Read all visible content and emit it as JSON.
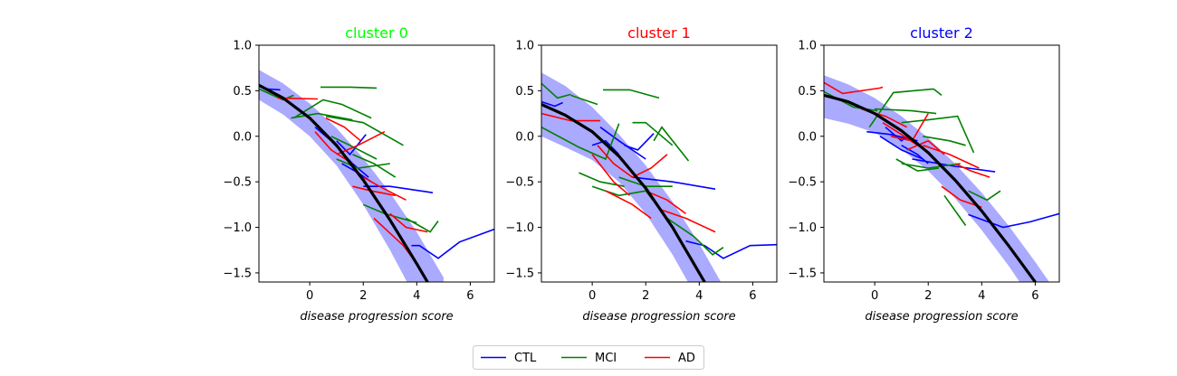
{
  "figure": {
    "legend": [
      {
        "label": "CTL",
        "color": "#0000ff"
      },
      {
        "label": "MCI",
        "color": "#008000"
      },
      {
        "label": "AD",
        "color": "#ff0000"
      }
    ],
    "legend_position": "bottom-center"
  },
  "chart_data": [
    {
      "type": "line",
      "title": "cluster 0",
      "title_color": "#00ff00",
      "xlabel": "disease progression score",
      "xlim": [
        -1.9,
        6.9
      ],
      "ylim": [
        -1.6,
        1.0
      ],
      "xticks": [
        0,
        2,
        4,
        6
      ],
      "yticks": [
        1.0,
        0.5,
        0.0,
        -0.5,
        -1.0,
        -1.5
      ],
      "mean_curve": {
        "color": "#000000",
        "x": [
          -1.9,
          -1,
          0,
          1,
          2,
          3,
          4,
          4.5
        ],
        "y": [
          0.56,
          0.42,
          0.2,
          -0.1,
          -0.48,
          -0.92,
          -1.4,
          -1.65
        ]
      },
      "band": {
        "color": "#aaaaff",
        "x": [
          -1.9,
          -1,
          0,
          1,
          2,
          3,
          4,
          5
        ],
        "upper": [
          0.73,
          0.58,
          0.36,
          0.09,
          -0.24,
          -0.62,
          -1.05,
          -1.55
        ],
        "lower": [
          0.4,
          0.24,
          0.0,
          -0.32,
          -0.75,
          -1.25,
          -1.8,
          -2.4
        ]
      },
      "series": [
        {
          "group": "CTL",
          "x": [
            -1.6,
            -1.1
          ],
          "y": [
            0.52,
            0.51
          ]
        },
        {
          "group": "CTL",
          "x": [
            0.2,
            0.8,
            1.6,
            2.2
          ],
          "y": [
            0.1,
            -0.05,
            -0.3,
            -0.45
          ]
        },
        {
          "group": "CTL",
          "x": [
            1.0,
            1.5,
            2.1
          ],
          "y": [
            -0.05,
            -0.2,
            0.02
          ]
        },
        {
          "group": "CTL",
          "x": [
            2.0,
            3.0,
            4.6
          ],
          "y": [
            -0.55,
            -0.55,
            -0.62
          ]
        },
        {
          "group": "CTL",
          "x": [
            3.8,
            4.1,
            4.8,
            5.6,
            6.9
          ],
          "y": [
            -1.2,
            -1.2,
            -1.34,
            -1.16,
            -1.02
          ]
        },
        {
          "group": "CTL",
          "x": [
            1.2,
            1.8,
            2.3
          ],
          "y": [
            -0.3,
            -0.4,
            -0.5
          ]
        },
        {
          "group": "MCI",
          "x": [
            -1.9,
            -1.0,
            -0.6
          ],
          "y": [
            0.52,
            0.4,
            0.45
          ]
        },
        {
          "group": "MCI",
          "x": [
            0.4,
            1.5,
            2.5
          ],
          "y": [
            0.54,
            0.54,
            0.53
          ]
        },
        {
          "group": "MCI",
          "x": [
            -0.7,
            0.3,
            1.6
          ],
          "y": [
            0.2,
            0.25,
            0.18
          ]
        },
        {
          "group": "MCI",
          "x": [
            0.6,
            2.0,
            3.5
          ],
          "y": [
            0.22,
            0.15,
            -0.1
          ]
        },
        {
          "group": "MCI",
          "x": [
            -0.6,
            0.5,
            1.2,
            2.3
          ],
          "y": [
            0.2,
            0.4,
            0.35,
            0.2
          ]
        },
        {
          "group": "MCI",
          "x": [
            1.0,
            1.8,
            3.0
          ],
          "y": [
            -0.25,
            -0.35,
            -0.3
          ]
        },
        {
          "group": "MCI",
          "x": [
            2.0,
            2.8,
            4.0
          ],
          "y": [
            -0.75,
            -0.85,
            -0.95
          ]
        },
        {
          "group": "MCI",
          "x": [
            3.6,
            4.2,
            4.5,
            4.8
          ],
          "y": [
            -0.9,
            -1.0,
            -1.05,
            -0.93
          ]
        },
        {
          "group": "MCI",
          "x": [
            0.8,
            1.5,
            2.5
          ],
          "y": [
            0.0,
            -0.1,
            -0.25
          ]
        },
        {
          "group": "MCI",
          "x": [
            1.6,
            2.4,
            3.2
          ],
          "y": [
            -0.2,
            -0.3,
            -0.45
          ]
        },
        {
          "group": "AD",
          "x": [
            -1.2,
            0.3
          ],
          "y": [
            0.42,
            0.41
          ]
        },
        {
          "group": "AD",
          "x": [
            0.2,
            0.8,
            1.6
          ],
          "y": [
            0.05,
            -0.15,
            -0.3
          ]
        },
        {
          "group": "AD",
          "x": [
            1.6,
            2.3,
            3.2
          ],
          "y": [
            -0.55,
            -0.6,
            -0.65
          ]
        },
        {
          "group": "AD",
          "x": [
            3.0,
            3.6,
            4.4
          ],
          "y": [
            -0.85,
            -1.0,
            -1.05
          ]
        },
        {
          "group": "AD",
          "x": [
            1.0,
            1.8,
            2.8
          ],
          "y": [
            -0.2,
            -0.1,
            0.05
          ]
        },
        {
          "group": "AD",
          "x": [
            2.4,
            3.5,
            4.0
          ],
          "y": [
            -0.9,
            -1.2,
            -1.4
          ]
        },
        {
          "group": "AD",
          "x": [
            0.6,
            1.3,
            1.9
          ],
          "y": [
            0.2,
            0.1,
            -0.05
          ]
        },
        {
          "group": "AD",
          "x": [
            2.0,
            2.6,
            3.6
          ],
          "y": [
            -0.45,
            -0.55,
            -0.7
          ]
        }
      ]
    },
    {
      "type": "line",
      "title": "cluster 1",
      "title_color": "#ff0000",
      "xlabel": "disease progression score",
      "xlim": [
        -1.9,
        6.9
      ],
      "ylim": [
        -1.6,
        1.0
      ],
      "xticks": [
        0,
        2,
        4,
        6
      ],
      "yticks": [
        1.0,
        0.5,
        0.0,
        -0.5,
        -1.0,
        -1.5
      ],
      "mean_curve": {
        "color": "#000000",
        "x": [
          -1.9,
          -1,
          0,
          1,
          2,
          3,
          4,
          4.7
        ],
        "y": [
          0.35,
          0.23,
          0.05,
          -0.22,
          -0.57,
          -1.0,
          -1.5,
          -1.85
        ]
      },
      "band": {
        "color": "#aaaaff",
        "x": [
          -1.9,
          -1,
          0,
          1,
          2,
          3,
          4,
          5
        ],
        "upper": [
          0.7,
          0.55,
          0.32,
          0.02,
          -0.32,
          -0.72,
          -1.18,
          -1.7
        ],
        "lower": [
          0.0,
          -0.12,
          -0.26,
          -0.5,
          -0.85,
          -1.3,
          -1.82,
          -2.4
        ]
      },
      "series": [
        {
          "group": "CTL",
          "x": [
            -1.9,
            -1.4,
            -1.1
          ],
          "y": [
            0.38,
            0.33,
            0.37
          ]
        },
        {
          "group": "CTL",
          "x": [
            0.3,
            1.0,
            2.0
          ],
          "y": [
            0.1,
            -0.05,
            -0.25
          ]
        },
        {
          "group": "CTL",
          "x": [
            1.2,
            1.7,
            2.3
          ],
          "y": [
            -0.1,
            -0.15,
            0.03
          ]
        },
        {
          "group": "CTL",
          "x": [
            1.5,
            3.0,
            4.6
          ],
          "y": [
            -0.45,
            -0.5,
            -0.58
          ]
        },
        {
          "group": "CTL",
          "x": [
            3.5,
            4.2,
            4.9,
            5.9,
            6.9
          ],
          "y": [
            -1.15,
            -1.2,
            -1.34,
            -1.2,
            -1.19
          ]
        },
        {
          "group": "CTL",
          "x": [
            0.0,
            0.5,
            1.0
          ],
          "y": [
            -0.1,
            -0.05,
            -0.2
          ]
        },
        {
          "group": "MCI",
          "x": [
            -1.9,
            -1.3,
            -0.8
          ],
          "y": [
            0.58,
            0.42,
            0.46
          ]
        },
        {
          "group": "MCI",
          "x": [
            0.4,
            1.4,
            2.5
          ],
          "y": [
            0.51,
            0.51,
            0.42
          ]
        },
        {
          "group": "MCI",
          "x": [
            -0.8,
            -0.3,
            0.2
          ],
          "y": [
            0.45,
            0.4,
            0.35
          ]
        },
        {
          "group": "MCI",
          "x": [
            1.5,
            2.0,
            3.0
          ],
          "y": [
            0.15,
            0.15,
            -0.1
          ]
        },
        {
          "group": "MCI",
          "x": [
            2.3,
            2.6,
            3.6
          ],
          "y": [
            -0.05,
            0.1,
            -0.27
          ]
        },
        {
          "group": "MCI",
          "x": [
            -1.9,
            -0.5,
            0.5,
            1.0
          ],
          "y": [
            0.1,
            -0.12,
            -0.25,
            0.14
          ]
        },
        {
          "group": "MCI",
          "x": [
            -0.5,
            0.3,
            1.2
          ],
          "y": [
            -0.4,
            -0.5,
            -0.55
          ]
        },
        {
          "group": "MCI",
          "x": [
            0.0,
            1.0,
            2.0
          ],
          "y": [
            -0.55,
            -0.65,
            -0.6
          ]
        },
        {
          "group": "MCI",
          "x": [
            2.0,
            2.8,
            3.8,
            4.5,
            4.9
          ],
          "y": [
            -0.6,
            -0.9,
            -1.1,
            -1.3,
            -1.22
          ]
        },
        {
          "group": "MCI",
          "x": [
            1.0,
            2.0,
            3.0
          ],
          "y": [
            -0.45,
            -0.55,
            -0.55
          ]
        },
        {
          "group": "AD",
          "x": [
            -1.9,
            -0.8,
            0.3
          ],
          "y": [
            0.25,
            0.17,
            0.17
          ]
        },
        {
          "group": "AD",
          "x": [
            0.2,
            0.8,
            1.5
          ],
          "y": [
            -0.1,
            -0.3,
            -0.45
          ]
        },
        {
          "group": "AD",
          "x": [
            0.5,
            1.5,
            2.2
          ],
          "y": [
            -0.6,
            -0.75,
            -0.9
          ]
        },
        {
          "group": "AD",
          "x": [
            2.5,
            3.5,
            4.6
          ],
          "y": [
            -0.8,
            -0.9,
            -1.05
          ]
        },
        {
          "group": "AD",
          "x": [
            1.5,
            2.2,
            2.8
          ],
          "y": [
            -0.45,
            -0.35,
            -0.2
          ]
        },
        {
          "group": "AD",
          "x": [
            3.0,
            3.6,
            4.1
          ],
          "y": [
            -1.0,
            -1.3,
            -1.55
          ]
        },
        {
          "group": "AD",
          "x": [
            0.0,
            0.8,
            1.4
          ],
          "y": [
            -0.2,
            -0.5,
            -0.65
          ]
        },
        {
          "group": "AD",
          "x": [
            2.0,
            2.8,
            3.5
          ],
          "y": [
            -0.6,
            -0.7,
            -0.85
          ]
        }
      ]
    },
    {
      "type": "line",
      "title": "cluster 2",
      "title_color": "#0000ff",
      "xlabel": "disease progression score",
      "xlim": [
        -1.9,
        6.9
      ],
      "ylim": [
        -1.6,
        1.0
      ],
      "xticks": [
        0,
        2,
        4,
        6
      ],
      "yticks": [
        1.0,
        0.5,
        0.0,
        -0.5,
        -1.0,
        -1.5
      ],
      "mean_curve": {
        "color": "#000000",
        "x": [
          -1.9,
          -1,
          0,
          1,
          2,
          3,
          4,
          5,
          6,
          6.2
        ],
        "y": [
          0.45,
          0.38,
          0.25,
          0.06,
          -0.18,
          -0.48,
          -0.82,
          -1.2,
          -1.6,
          -1.7
        ]
      },
      "band": {
        "color": "#aaaaff",
        "x": [
          -1.9,
          -1,
          0,
          1,
          2,
          3,
          4,
          5,
          6,
          7
        ],
        "upper": [
          0.67,
          0.57,
          0.42,
          0.22,
          -0.02,
          -0.3,
          -0.62,
          -0.98,
          -1.38,
          -1.8
        ],
        "lower": [
          0.2,
          0.14,
          0.04,
          -0.14,
          -0.38,
          -0.68,
          -1.03,
          -1.42,
          -1.85,
          -2.3
        ]
      },
      "series": [
        {
          "group": "CTL",
          "x": [
            -0.3,
            0.6,
            1.6
          ],
          "y": [
            0.05,
            0.02,
            -0.05
          ]
        },
        {
          "group": "CTL",
          "x": [
            0.2,
            1.0,
            1.8
          ],
          "y": [
            0.0,
            -0.15,
            -0.25
          ]
        },
        {
          "group": "CTL",
          "x": [
            1.4,
            3.0,
            4.5
          ],
          "y": [
            -0.25,
            -0.33,
            -0.39
          ]
        },
        {
          "group": "CTL",
          "x": [
            3.5,
            4.8,
            5.8,
            6.9
          ],
          "y": [
            -0.86,
            -1.0,
            -0.94,
            -0.85
          ]
        },
        {
          "group": "CTL",
          "x": [
            1.0,
            1.6,
            2.0
          ],
          "y": [
            -0.1,
            -0.2,
            -0.3
          ]
        },
        {
          "group": "CTL",
          "x": [
            0.4,
            1.0,
            1.2
          ],
          "y": [
            0.1,
            -0.05,
            0.0
          ]
        },
        {
          "group": "MCI",
          "x": [
            -1.9,
            -0.8,
            0.1
          ],
          "y": [
            0.49,
            0.32,
            0.28
          ]
        },
        {
          "group": "MCI",
          "x": [
            -0.2,
            0.7,
            2.2
          ],
          "y": [
            0.1,
            0.48,
            0.52
          ]
        },
        {
          "group": "MCI",
          "x": [
            2.2,
            2.5
          ],
          "y": [
            0.52,
            0.45
          ]
        },
        {
          "group": "MCI",
          "x": [
            0.0,
            1.4,
            2.3
          ],
          "y": [
            0.3,
            0.28,
            0.25
          ]
        },
        {
          "group": "MCI",
          "x": [
            1.0,
            2.0,
            3.1,
            3.7
          ],
          "y": [
            0.15,
            0.18,
            0.22,
            -0.18
          ]
        },
        {
          "group": "MCI",
          "x": [
            1.0,
            2.0,
            3.2
          ],
          "y": [
            -0.3,
            -0.35,
            -0.3
          ]
        },
        {
          "group": "MCI",
          "x": [
            3.5,
            4.2,
            4.7
          ],
          "y": [
            -0.6,
            -0.7,
            -0.6
          ]
        },
        {
          "group": "MCI",
          "x": [
            1.8,
            2.8,
            3.4
          ],
          "y": [
            0.0,
            -0.05,
            -0.1
          ]
        },
        {
          "group": "MCI",
          "x": [
            2.6,
            3.4
          ],
          "y": [
            -0.65,
            -0.98
          ]
        },
        {
          "group": "MCI",
          "x": [
            0.8,
            1.6,
            2.4
          ],
          "y": [
            -0.25,
            -0.38,
            -0.35
          ]
        },
        {
          "group": "AD",
          "x": [
            -1.9,
            -1.2,
            0.2,
            0.3
          ],
          "y": [
            0.59,
            0.47,
            0.53,
            0.54
          ]
        },
        {
          "group": "AD",
          "x": [
            -0.5,
            0.4,
            1.2
          ],
          "y": [
            0.3,
            0.22,
            0.1
          ]
        },
        {
          "group": "AD",
          "x": [
            0.6,
            1.4,
            2.0
          ],
          "y": [
            0.0,
            -0.05,
            0.25
          ]
        },
        {
          "group": "AD",
          "x": [
            1.8,
            2.8,
            3.9
          ],
          "y": [
            -0.1,
            -0.2,
            -0.35
          ]
        },
        {
          "group": "AD",
          "x": [
            3.0,
            3.6,
            4.3
          ],
          "y": [
            -0.3,
            -0.38,
            -0.45
          ]
        },
        {
          "group": "AD",
          "x": [
            2.5,
            3.2,
            4.0
          ],
          "y": [
            -0.55,
            -0.7,
            -0.78
          ]
        },
        {
          "group": "AD",
          "x": [
            0.3,
            1.0,
            1.6
          ],
          "y": [
            0.15,
            0.02,
            -0.1
          ]
        },
        {
          "group": "AD",
          "x": [
            1.2,
            2.0,
            2.6
          ],
          "y": [
            -0.15,
            -0.05,
            -0.2
          ]
        }
      ]
    }
  ]
}
